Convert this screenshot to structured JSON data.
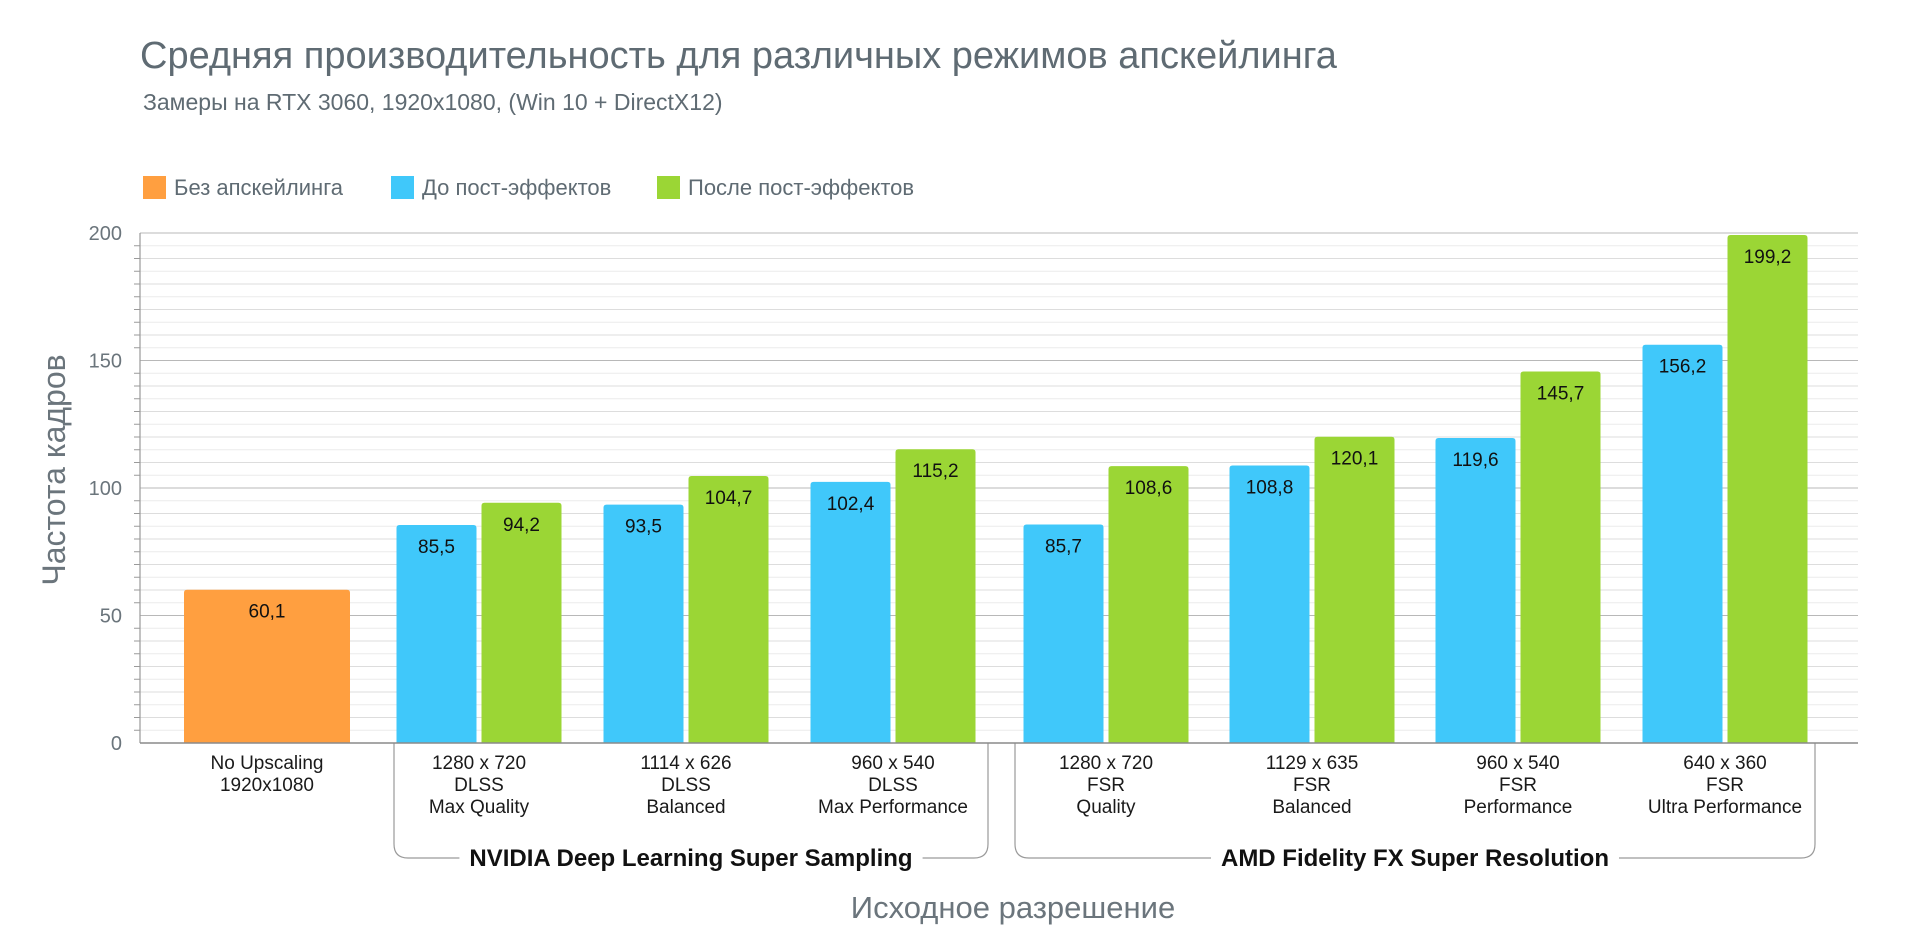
{
  "chart_data": {
    "type": "bar",
    "title": "Средняя производительность для различных режимов апскейлинга",
    "subtitle": "Замеры на RTX 3060, 1920x1080, (Win 10 + DirectX12)",
    "ylabel": "Частота кадров",
    "xlabel": "Исходное разрешение",
    "ylim": [
      0,
      200
    ],
    "yticks": [
      0,
      50,
      100,
      150,
      200
    ],
    "grid": true,
    "legend_position": "top-left",
    "colors": {
      "no_upscaling": "#ff9f40",
      "before": "#40c8fa",
      "after": "#9bd635"
    },
    "legend": [
      {
        "key": "no_upscaling",
        "label": "Без апскейлинга"
      },
      {
        "key": "before",
        "label": "До пост-эффектов"
      },
      {
        "key": "after",
        "label": "После пост-эффектов"
      }
    ],
    "groups": [
      {
        "name": "",
        "categories": [
          {
            "label": [
              "No Upscaling",
              "1920x1080"
            ],
            "bars": [
              {
                "series": "no_upscaling",
                "value": 60.1,
                "label": "60,1"
              }
            ]
          }
        ]
      },
      {
        "name": "NVIDIA Deep Learning Super Sampling",
        "categories": [
          {
            "label": [
              "1280 x 720",
              "DLSS",
              "Max Quality"
            ],
            "bars": [
              {
                "series": "before",
                "value": 85.5,
                "label": "85,5"
              },
              {
                "series": "after",
                "value": 94.2,
                "label": "94,2"
              }
            ]
          },
          {
            "label": [
              "1114 x 626",
              "DLSS",
              "Balanced"
            ],
            "bars": [
              {
                "series": "before",
                "value": 93.5,
                "label": "93,5"
              },
              {
                "series": "after",
                "value": 104.7,
                "label": "104,7"
              }
            ]
          },
          {
            "label": [
              "960 x 540",
              "DLSS",
              "Max Performance"
            ],
            "bars": [
              {
                "series": "before",
                "value": 102.4,
                "label": "102,4"
              },
              {
                "series": "after",
                "value": 115.2,
                "label": "115,2"
              }
            ]
          }
        ]
      },
      {
        "name": "AMD Fidelity FX Super Resolution",
        "categories": [
          {
            "label": [
              "1280 x 720",
              "FSR",
              "Quality"
            ],
            "bars": [
              {
                "series": "before",
                "value": 85.7,
                "label": "85,7"
              },
              {
                "series": "after",
                "value": 108.6,
                "label": "108,6"
              }
            ]
          },
          {
            "label": [
              "1129 x 635",
              "FSR",
              "Balanced"
            ],
            "bars": [
              {
                "series": "before",
                "value": 108.8,
                "label": "108,8"
              },
              {
                "series": "after",
                "value": 120.1,
                "label": "120,1"
              }
            ]
          },
          {
            "label": [
              "960 x 540",
              "FSR",
              "Performance"
            ],
            "bars": [
              {
                "series": "before",
                "value": 119.6,
                "label": "119,6"
              },
              {
                "series": "after",
                "value": 145.7,
                "label": "145,7"
              }
            ]
          },
          {
            "label": [
              "640 x 360",
              "FSR",
              "Ultra Performance"
            ],
            "bars": [
              {
                "series": "before",
                "value": 156.2,
                "label": "156,2"
              },
              {
                "series": "after",
                "value": 199.2,
                "label": "199,2"
              }
            ]
          }
        ]
      }
    ]
  }
}
